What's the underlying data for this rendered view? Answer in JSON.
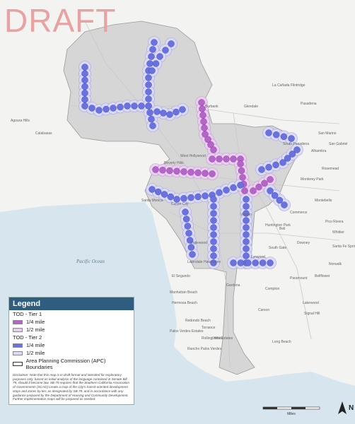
{
  "watermark": "DRAFT",
  "places": [
    "Burbank",
    "Glendale",
    "Pasadena",
    "La Cañada Flintridge",
    "Calabasas",
    "Agoura Hills",
    "Beverly Hills",
    "West Hollywood",
    "Santa Monica",
    "Culver City",
    "Inglewood",
    "El Segundo",
    "Manhattan Beach",
    "Hermosa Beach",
    "Redondo Beach",
    "Torrance",
    "Gardena",
    "Hawthorne",
    "Compton",
    "Carson",
    "Long Beach",
    "Huntington Park",
    "South Gate",
    "Lynwood",
    "Downey",
    "Norwalk",
    "Bellflower",
    "Lakewood",
    "Paramount",
    "Alhambra",
    "San Marino",
    "San Gabriel",
    "Rosemead",
    "Monterey Park",
    "Montebello",
    "Commerce",
    "Bell",
    "Pico Rivera",
    "Whittier",
    "Santa Fe Springs",
    "Rancho Palos Verdes",
    "Palos Verdes Estates",
    "Rolling Hills Estates",
    "Lomita",
    "Vernon",
    "South Pasadena",
    "Signal Hill",
    "Lawndale"
  ],
  "ocean": "Pacific Ocean",
  "legend": {
    "title": "Legend",
    "tier1": "TOD - Tier 1",
    "tier1_quarter": "1/4 mile",
    "tier1_half": "1/2 mile",
    "tier2": "TOD - Tier 2",
    "tier2_quarter": "1/4 mile",
    "tier2_half": "1/2 mile",
    "apc": "Area Planning Commission (APC) Boundaries",
    "disclaimer": "Disclaimer: Note that this map is in draft format and intended for exploratory purposes only, based on initial analysis of the language contained in Senate Bill 79, should it become law. SB 79 requires that the Southern California Association of Governments (SCAG) create a map of the City's transit-oriented development stops and zones by tier, as designated by SB 79, and in accordance with any guidance prepared by the Department of Housing and Community Development. Further implementation maps will be prepared as needed."
  },
  "north": "N",
  "scale_unit": "Miles"
}
